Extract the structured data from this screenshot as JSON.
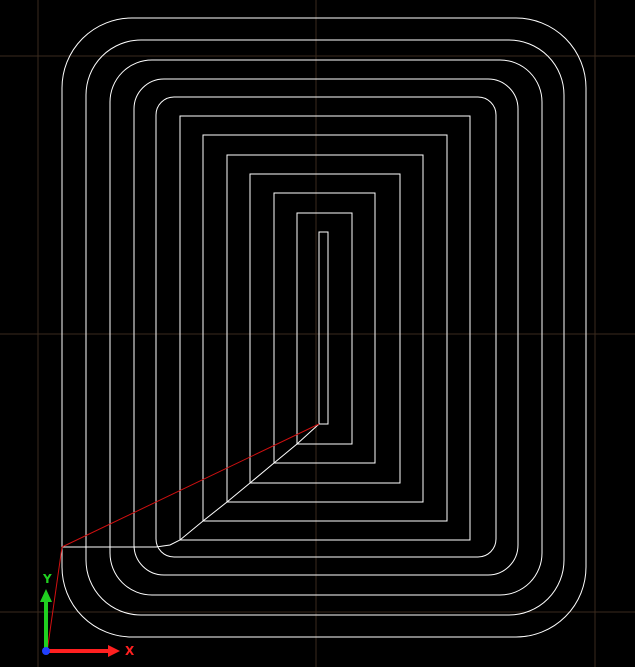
{
  "viewport": {
    "background": "#000000",
    "grid_color": "#3a2a1e",
    "toolpath_color": "#ffffff",
    "rapid_color": "#d01010"
  },
  "axes": {
    "x_label": "X",
    "y_label": "Y",
    "x_color": "#ff2020",
    "y_color": "#20d020",
    "z_color": "#2040ff"
  }
}
